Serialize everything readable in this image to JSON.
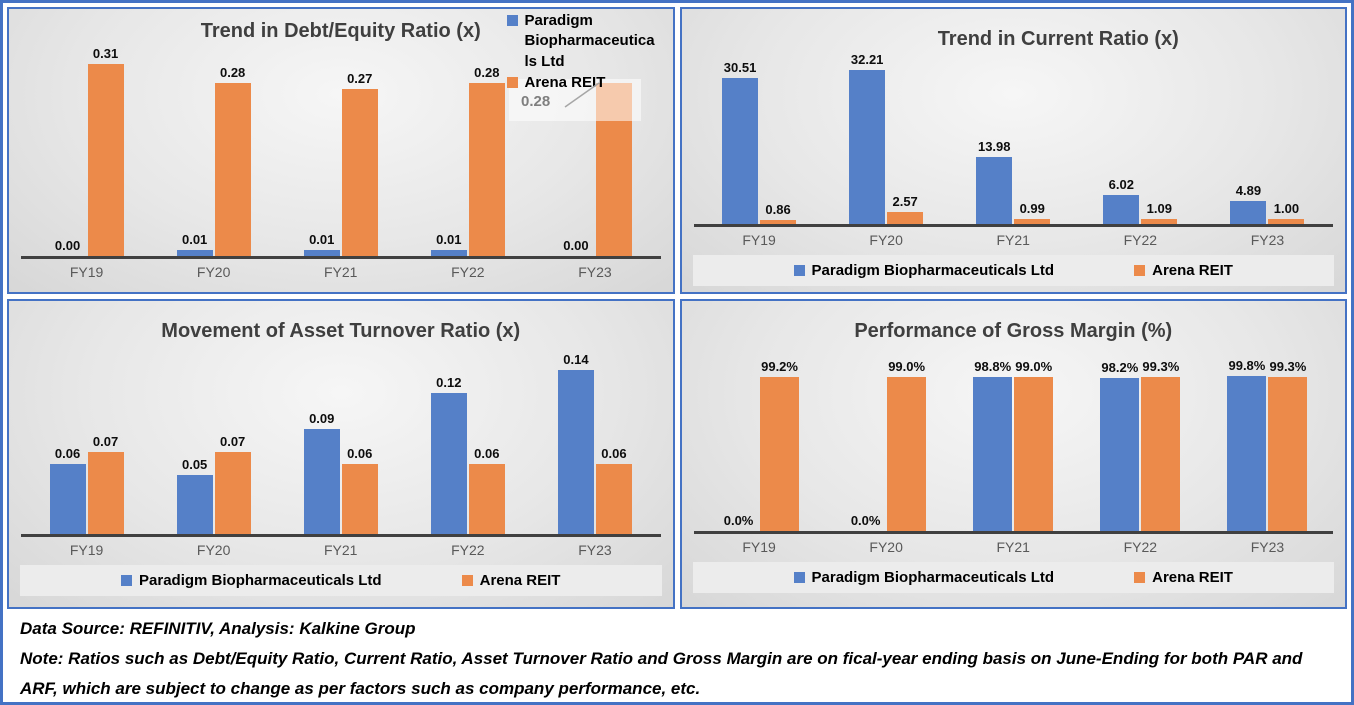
{
  "colors": {
    "blue": "#5580C8",
    "orange": "#EC8A4A",
    "border_blue": "#4472C4",
    "axis": "#404040",
    "title_text": "#3F3F3F",
    "x_label_text": "#595959",
    "callout_text": "#7F7F7F",
    "legend_strip_bg": "#ECECEC"
  },
  "series_names": [
    "Paradigm Biopharmaceuticals Ltd",
    "Arena REIT"
  ],
  "chart_data": [
    {
      "type": "bar",
      "title": "Trend in Debt/Equity Ratio (x)",
      "categories": [
        "FY19",
        "FY20",
        "FY21",
        "FY22",
        "FY23"
      ],
      "series": [
        {
          "name": "Paradigm Biopharmaceuticals Ltd",
          "values": [
            0.0,
            0.01,
            0.01,
            0.01,
            0.0
          ],
          "labels": [
            "0.00",
            "0.01",
            "0.01",
            "0.01",
            "0.00"
          ]
        },
        {
          "name": "Arena REIT",
          "values": [
            0.31,
            0.28,
            0.27,
            0.28,
            0.28
          ],
          "labels": [
            "0.31",
            "0.28",
            "0.27",
            "0.28",
            ""
          ]
        }
      ],
      "ylim": [
        0,
        0.335
      ],
      "grid": false,
      "legend_position": "top-right",
      "side_legend": [
        {
          "series": "Paradigm Biopharmaceuticals Ltd",
          "lines": [
            "Paradigm",
            "Biopharmaceutica",
            "ls Ltd"
          ]
        },
        {
          "series": "Arena REIT",
          "lines": [
            "Arena REIT"
          ]
        }
      ],
      "callout": {
        "text": "0.28",
        "points_to": "FY23 Arena REIT bar"
      }
    },
    {
      "type": "bar",
      "title": "Trend in Current Ratio (x)",
      "categories": [
        "FY19",
        "FY20",
        "FY21",
        "FY22",
        "FY23"
      ],
      "series": [
        {
          "name": "Paradigm Biopharmaceuticals Ltd",
          "values": [
            30.51,
            32.21,
            13.98,
            6.02,
            4.89
          ],
          "labels": [
            "30.51",
            "32.21",
            "13.98",
            "6.02",
            "4.89"
          ]
        },
        {
          "name": "Arena REIT",
          "values": [
            0.86,
            2.57,
            0.99,
            1.09,
            1.0
          ],
          "labels": [
            "0.86",
            "2.57",
            "0.99",
            "1.09",
            "1.00"
          ]
        }
      ],
      "ylim": [
        0,
        34
      ],
      "grid": false,
      "legend_position": "bottom"
    },
    {
      "type": "bar",
      "title": "Movement of Asset Turnover Ratio (x)",
      "categories": [
        "FY19",
        "FY20",
        "FY21",
        "FY22",
        "FY23"
      ],
      "series": [
        {
          "name": "Paradigm Biopharmaceuticals Ltd",
          "values": [
            0.06,
            0.05,
            0.09,
            0.12,
            0.14
          ],
          "labels": [
            "0.06",
            "0.05",
            "0.09",
            "0.12",
            "0.14"
          ]
        },
        {
          "name": "Arena REIT",
          "values": [
            0.07,
            0.07,
            0.06,
            0.06,
            0.06
          ],
          "labels": [
            "0.07",
            "0.07",
            "0.06",
            "0.06",
            "0.06"
          ]
        }
      ],
      "ylim": [
        0,
        0.158
      ],
      "grid": false,
      "legend_position": "bottom"
    },
    {
      "type": "bar",
      "title": "Performance of Gross Margin (%)",
      "categories": [
        "FY19",
        "FY20",
        "FY21",
        "FY22",
        "FY23"
      ],
      "series": [
        {
          "name": "Paradigm Biopharmaceuticals Ltd",
          "values": [
            0.0,
            0.0,
            98.8,
            98.2,
            99.8
          ],
          "labels": [
            "0.0%",
            "0.0%",
            "98.8%",
            "98.2%",
            "99.8%"
          ]
        },
        {
          "name": "Arena REIT",
          "values": [
            99.2,
            99.0,
            99.0,
            99.3,
            99.3
          ],
          "labels": [
            "99.2%",
            "99.0%",
            "99.0%",
            "99.3%",
            "99.3%"
          ]
        }
      ],
      "ylim": [
        0,
        117
      ],
      "grid": false,
      "legend_position": "bottom"
    }
  ],
  "footer": {
    "source": "Data Source: REFINITIV, Analysis: Kalkine Group",
    "note": "Note: Ratios such as Debt/Equity Ratio, Current Ratio, Asset Turnover Ratio and Gross Margin are on fical-year ending basis on June-Ending for both PAR and ARF, which are subject to change as per factors such as company performance, etc."
  }
}
